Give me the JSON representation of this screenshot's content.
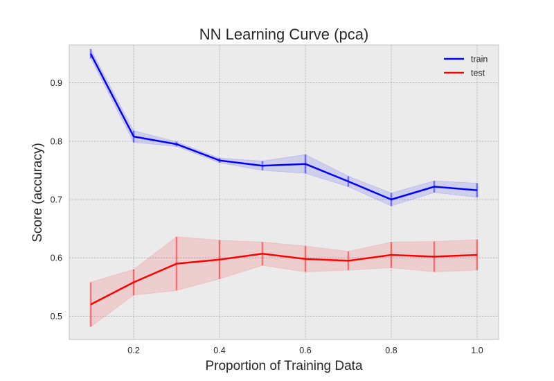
{
  "chart_data": {
    "type": "line",
    "title": "NN Learning Curve (pca)",
    "xlabel": "Proportion of Training Data",
    "ylabel": "Score (accuracy)",
    "xlim": [
      0.05,
      1.05
    ],
    "ylim": [
      0.46,
      0.965
    ],
    "xticks": [
      0.2,
      0.4,
      0.6,
      0.8,
      1.0
    ],
    "xtick_labels": [
      "0.2",
      "0.4",
      "0.6",
      "0.8",
      "1.0"
    ],
    "yticks": [
      0.5,
      0.6,
      0.7,
      0.8,
      0.9
    ],
    "ytick_labels": [
      "0.5",
      "0.6",
      "0.7",
      "0.8",
      "0.9"
    ],
    "grid": true,
    "legend_position": "top-right",
    "x": [
      0.1,
      0.2,
      0.3,
      0.4,
      0.5,
      0.6,
      0.7,
      0.8,
      0.9,
      1.0
    ],
    "series": [
      {
        "name": "train",
        "color": "#0000ff",
        "values": [
          0.95,
          0.808,
          0.795,
          0.767,
          0.758,
          0.761,
          0.731,
          0.7,
          0.722,
          0.716
        ],
        "std": [
          0.008,
          0.01,
          0.004,
          0.004,
          0.008,
          0.016,
          0.009,
          0.011,
          0.01,
          0.012
        ]
      },
      {
        "name": "test",
        "color": "#ff0000",
        "values": [
          0.52,
          0.558,
          0.59,
          0.597,
          0.607,
          0.598,
          0.595,
          0.605,
          0.602,
          0.605
        ],
        "std": [
          0.038,
          0.022,
          0.046,
          0.033,
          0.02,
          0.022,
          0.016,
          0.022,
          0.026,
          0.026
        ]
      }
    ]
  }
}
